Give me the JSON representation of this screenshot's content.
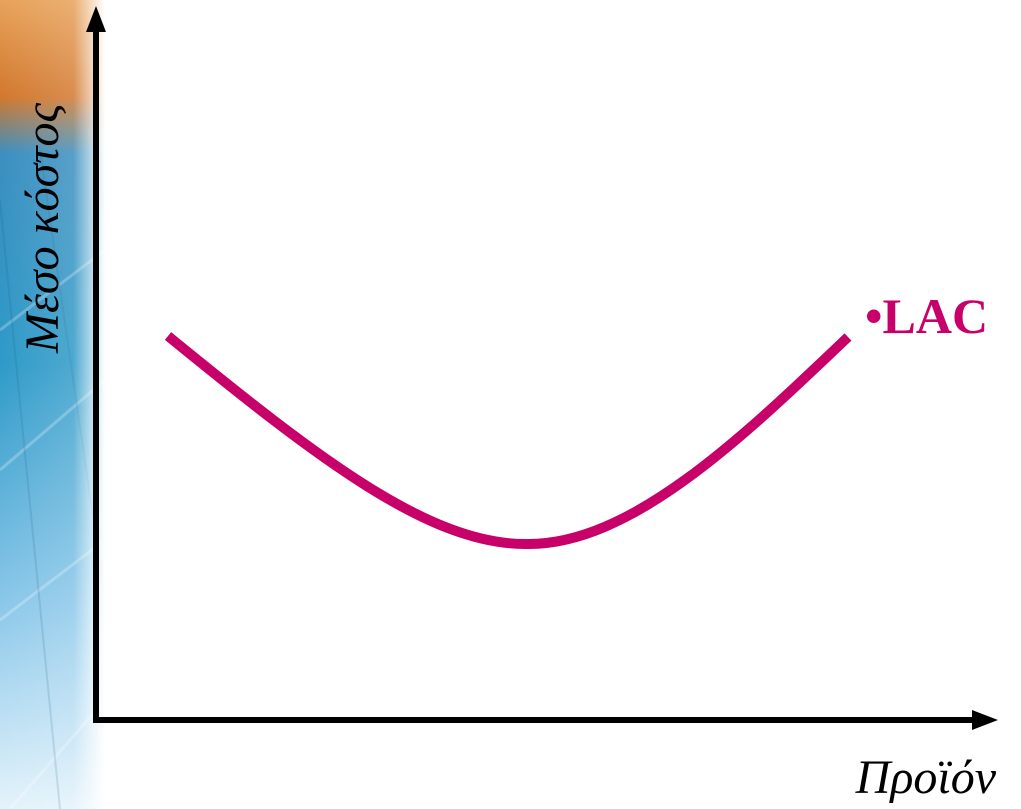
{
  "diagram": {
    "y_axis_label": "Μέσο κόστος",
    "x_axis_label": "Προϊόν",
    "curve_label": "•LAC"
  },
  "colors": {
    "curve": "#C8006A",
    "axes": "#000000",
    "curve_label": "#C8006A",
    "side_strip_top": "#D2782E",
    "side_strip_mid": "#2E9AC8",
    "side_strip_bottom": "#D6ECF8"
  }
}
